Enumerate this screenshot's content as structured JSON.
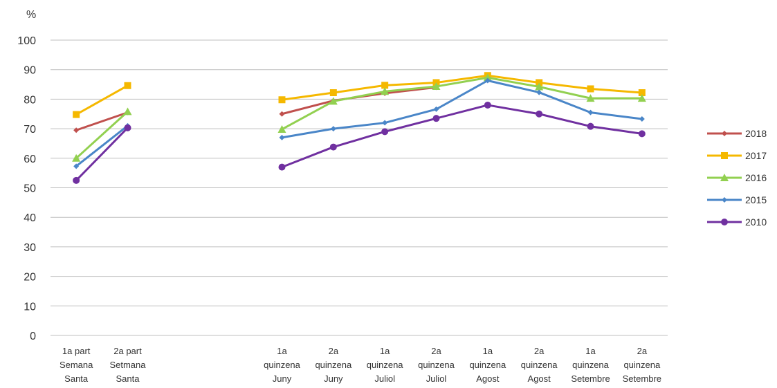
{
  "chart_data": {
    "type": "line",
    "ylabel": "%",
    "ylim": [
      0,
      100
    ],
    "yticks": [
      0,
      10,
      20,
      30,
      40,
      50,
      60,
      70,
      80,
      90,
      100
    ],
    "grid": true,
    "legend": "right",
    "categories": [
      [
        "1a part",
        "Semana",
        "Santa"
      ],
      [
        "2a part",
        "Setmana",
        "Santa"
      ],
      [
        "",
        "",
        ""
      ],
      [
        "",
        "",
        ""
      ],
      [
        "1a",
        "quinzena",
        "Juny"
      ],
      [
        "2a",
        "quinzena",
        "Juny"
      ],
      [
        "1a",
        "quinzena",
        "Juliol"
      ],
      [
        "2a",
        "quinzena",
        "Juliol"
      ],
      [
        "1a",
        "quinzena",
        "Agost"
      ],
      [
        "2a",
        "quinzena",
        "Agost"
      ],
      [
        "1a",
        "quinzena",
        "Setembre"
      ],
      [
        "2a",
        "quinzena",
        "Setembre"
      ]
    ],
    "series": [
      {
        "name": "2018",
        "color": "#c0504d",
        "marker": "diamond",
        "values": [
          69.5,
          75.5,
          null,
          null,
          75,
          79.5,
          82,
          84,
          null,
          null,
          null,
          null
        ]
      },
      {
        "name": "2017",
        "color": "#f5b800",
        "marker": "square",
        "values": [
          74.8,
          84.6,
          null,
          null,
          79.8,
          82.2,
          84.7,
          85.6,
          88,
          85.6,
          83.5,
          82.2
        ]
      },
      {
        "name": "2016",
        "color": "#92d050",
        "marker": "triangle",
        "values": [
          60,
          75.8,
          null,
          null,
          69.8,
          79.3,
          82.6,
          84.3,
          87.3,
          84.2,
          80.3,
          80.3
        ]
      },
      {
        "name": "2015",
        "color": "#4a86c8",
        "marker": "diamond",
        "values": [
          57.3,
          71,
          null,
          null,
          67,
          70,
          72,
          76.6,
          86.3,
          82.3,
          75.5,
          73.3
        ]
      },
      {
        "name": "2010",
        "color": "#7030a0",
        "marker": "circle",
        "values": [
          52.5,
          70.3,
          null,
          null,
          57,
          63.8,
          69,
          73.5,
          78,
          75,
          70.8,
          68.3
        ]
      }
    ]
  }
}
